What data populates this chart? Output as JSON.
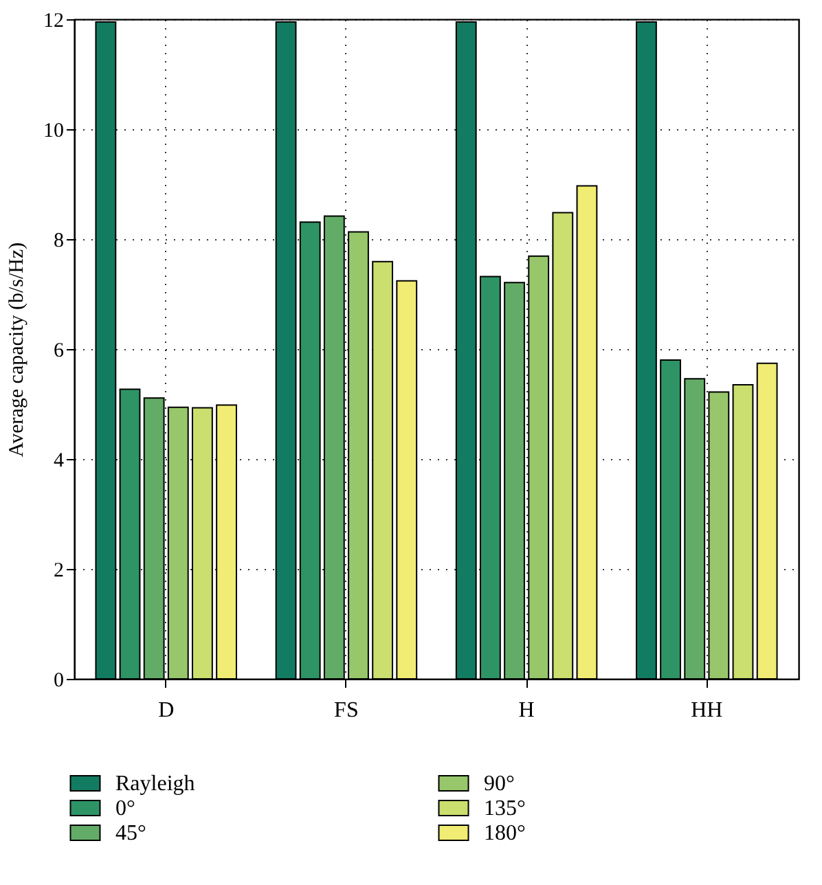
{
  "chart_data": {
    "type": "bar",
    "ylabel": "Average capacity (b/s/Hz)",
    "categories": [
      "D",
      "FS",
      "H",
      "HH"
    ],
    "series": [
      {
        "name": "Rayleigh",
        "color": "#127c62",
        "values": [
          11.95,
          11.95,
          11.95,
          11.95
        ]
      },
      {
        "name": "0°",
        "color": "#2e9466",
        "values": [
          5.27,
          8.31,
          7.32,
          5.8
        ]
      },
      {
        "name": "45°",
        "color": "#63ac68",
        "values": [
          5.11,
          8.42,
          7.21,
          5.46
        ]
      },
      {
        "name": "90°",
        "color": "#97c76a",
        "values": [
          4.94,
          8.13,
          7.69,
          5.22
        ]
      },
      {
        "name": "135°",
        "color": "#cadf6e",
        "values": [
          4.93,
          7.59,
          8.48,
          5.35
        ]
      },
      {
        "name": "180°",
        "color": "#f1ec73",
        "values": [
          4.98,
          7.24,
          8.97,
          5.74
        ]
      }
    ],
    "ylim": [
      0,
      12
    ],
    "yticks": [
      0,
      2,
      4,
      6,
      8,
      10,
      12
    ],
    "grid": true,
    "legend": "bottom"
  }
}
